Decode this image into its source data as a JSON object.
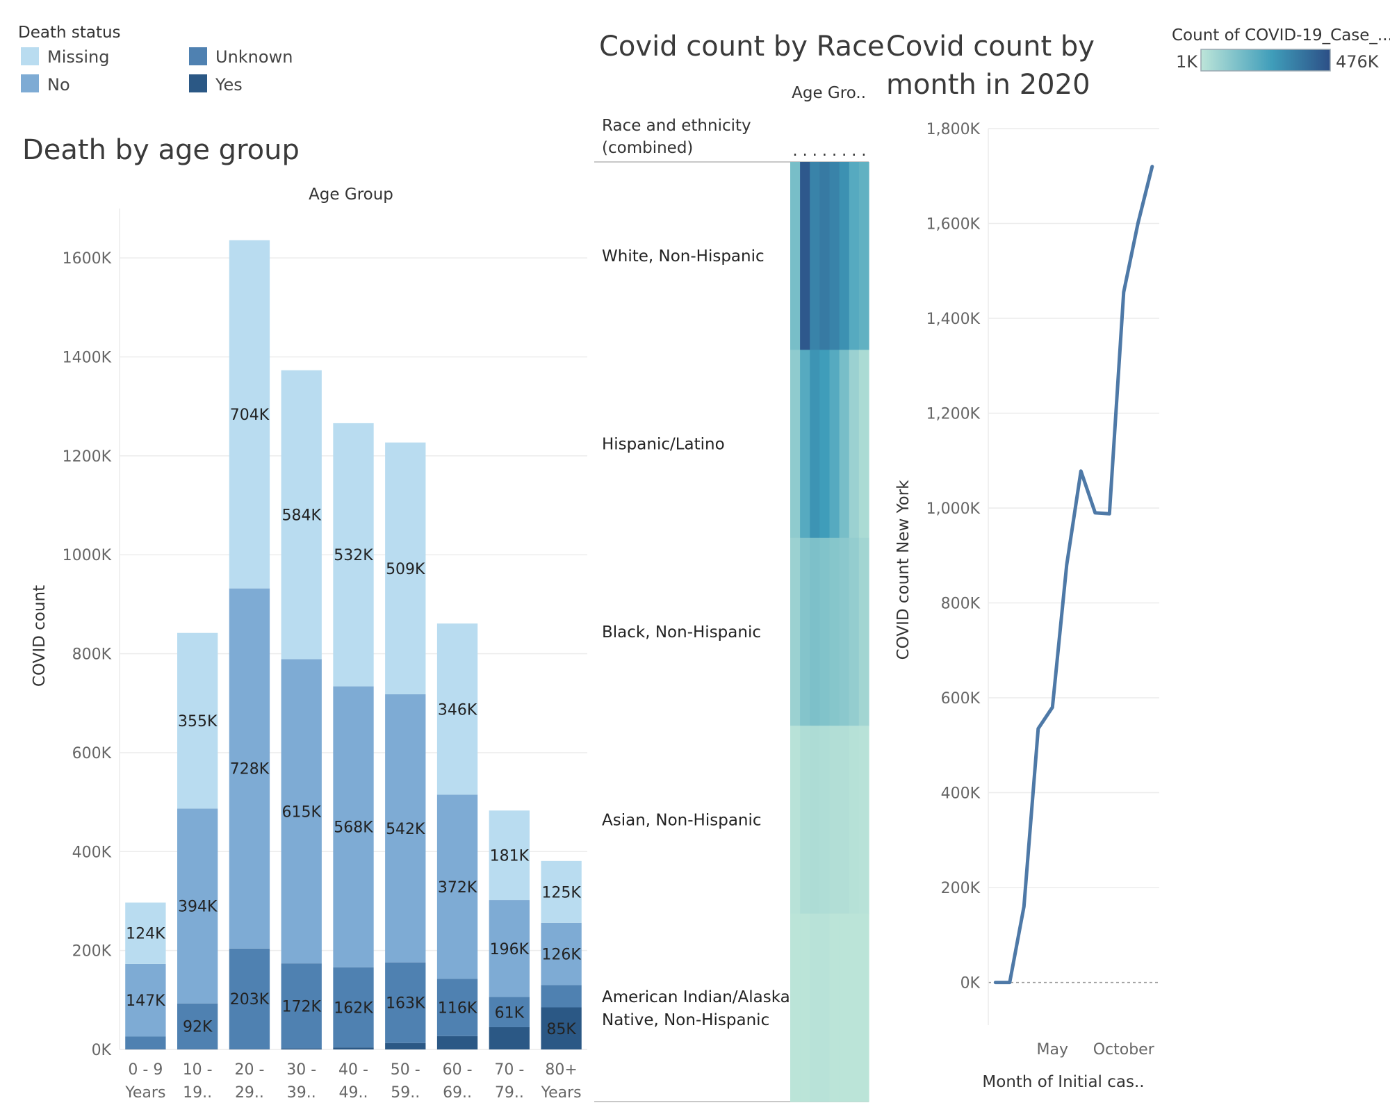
{
  "colors": {
    "Missing": "#b9dcf0",
    "No": "#7eabd4",
    "Unknown": "#4f81b1",
    "Yes": "#2b5885",
    "line": "#4e79a7",
    "heat_low": "#bde5d9",
    "heat_high": "#2c4f86"
  },
  "legend": {
    "title": "Death status",
    "items": [
      "Missing",
      "No",
      "Unknown",
      "Yes"
    ]
  },
  "heat_legend": {
    "title": "Count of COVID-19_Case_...",
    "min_label": "1K",
    "max_label": "476K"
  },
  "chart_data": [
    {
      "type": "bar",
      "stacked": true,
      "title": "Death by age group",
      "column_header": "Age Group",
      "ylabel": "COVID count",
      "ylim": [
        0,
        1700000
      ],
      "yticks": [
        0,
        200000,
        400000,
        600000,
        800000,
        1000000,
        1200000,
        1400000,
        1600000
      ],
      "ytick_labels": [
        "0K",
        "200K",
        "400K",
        "600K",
        "800K",
        "1000K",
        "1200K",
        "1400K",
        "1600K"
      ],
      "categories": [
        [
          "0 - 9",
          "Years"
        ],
        [
          "10 -",
          "19.."
        ],
        [
          "20 -",
          "29.."
        ],
        [
          "30 -",
          "39.."
        ],
        [
          "40 -",
          "49.."
        ],
        [
          "50 -",
          "59.."
        ],
        [
          "60 -",
          "69.."
        ],
        [
          "70 -",
          "79.."
        ],
        [
          "80+",
          "Years"
        ]
      ],
      "series": [
        {
          "name": "Yes",
          "values": [
            1000,
            1000,
            1000,
            2000,
            4000,
            13000,
            27000,
            45000,
            85000
          ],
          "labels": [
            "",
            "",
            "",
            "",
            "",
            "",
            "",
            "",
            "85K"
          ]
        },
        {
          "name": "Unknown",
          "values": [
            25000,
            92000,
            203000,
            172000,
            162000,
            163000,
            116000,
            61000,
            45000
          ],
          "labels": [
            "",
            "92K",
            "203K",
            "172K",
            "162K",
            "163K",
            "116K",
            "61K",
            ""
          ]
        },
        {
          "name": "No",
          "values": [
            147000,
            394000,
            728000,
            615000,
            568000,
            542000,
            372000,
            196000,
            126000
          ],
          "labels": [
            "147K",
            "394K",
            "728K",
            "615K",
            "568K",
            "542K",
            "372K",
            "196K",
            "126K"
          ]
        },
        {
          "name": "Missing",
          "values": [
            124000,
            355000,
            704000,
            584000,
            532000,
            509000,
            346000,
            181000,
            125000
          ],
          "labels": [
            "124K",
            "355K",
            "704K",
            "584K",
            "532K",
            "509K",
            "346K",
            "181K",
            "125K"
          ]
        }
      ],
      "label_colors": {
        "Yes": "#ffffff",
        "Unknown": [
          "#222222",
          "#ffffff",
          "#222222",
          "#222222",
          "#222222",
          "#222222",
          "#222222",
          "#ffffff",
          "#222222"
        ],
        "No": "#222222",
        "Missing": "#222222"
      }
    },
    {
      "type": "heatmap",
      "title": "Covid count by Race",
      "column_header": "Age Gro..",
      "row_header": [
        "Race and ethnicity",
        "(combined)"
      ],
      "rows": [
        [
          "White, Non-Hispanic"
        ],
        [
          "Hispanic/Latino"
        ],
        [
          "Black, Non-Hispanic"
        ],
        [
          "Asian, Non-Hispanic"
        ],
        [
          "American Indian/Alaska",
          "Native, Non-Hispanic"
        ]
      ],
      "values": [
        [
          0.3,
          0.95,
          0.7,
          0.75,
          0.7,
          0.62,
          0.45,
          0.4
        ],
        [
          0.2,
          0.45,
          0.6,
          0.55,
          0.45,
          0.3,
          0.15,
          0.08
        ],
        [
          0.15,
          0.25,
          0.28,
          0.26,
          0.24,
          0.22,
          0.18,
          0.12
        ],
        [
          0.02,
          0.06,
          0.07,
          0.06,
          0.05,
          0.05,
          0.03,
          0.02
        ],
        [
          0.01,
          0.01,
          0.02,
          0.02,
          0.01,
          0.01,
          0.01,
          0.01
        ]
      ],
      "value_range": [
        1000,
        476000
      ]
    },
    {
      "type": "line",
      "title": [
        "Covid count by",
        "month in 2020"
      ],
      "xlabel": "Month of Initial cas..",
      "ylabel": "COVID count New York",
      "x": [
        1,
        2,
        3,
        4,
        5,
        6,
        7,
        8,
        9,
        10,
        11,
        12
      ],
      "xlim": [
        0.5,
        12.5
      ],
      "xticks": [
        5,
        10
      ],
      "xtick_labels": [
        "May",
        "October"
      ],
      "y": [
        0,
        0,
        160000,
        535000,
        580000,
        880000,
        1078000,
        990000,
        988000,
        1455000,
        1600000,
        1720000
      ],
      "ylim": [
        -90000,
        1800000
      ],
      "yticks": [
        0,
        200000,
        400000,
        600000,
        800000,
        1000000,
        1200000,
        1400000,
        1600000,
        1800000
      ],
      "ytick_labels": [
        "0K",
        "200K",
        "400K",
        "600K",
        "800K",
        "1,000K",
        "1,200K",
        "1,400K",
        "1,600K",
        "1,800K"
      ]
    }
  ]
}
